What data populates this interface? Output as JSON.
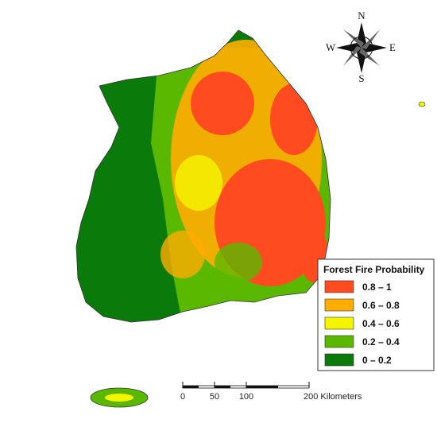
{
  "legend": {
    "title": "Forest Fire Probability",
    "items": [
      {
        "label": "0.8 – 1",
        "color": "#ff4b1f"
      },
      {
        "label": "0.6 – 0.8",
        "color": "#ffad00"
      },
      {
        "label": "0.4 – 0.6",
        "color": "#f5f500"
      },
      {
        "label": "0.2 – 0.4",
        "color": "#5ab800"
      },
      {
        "label": "0 – 0.2",
        "color": "#0a7a0a"
      }
    ]
  },
  "compass": {
    "north": "N",
    "east": "E",
    "south": "S",
    "west": "W"
  },
  "scale_bar": {
    "labels": [
      "0",
      "50",
      "100",
      "200 Kilometers"
    ]
  }
}
